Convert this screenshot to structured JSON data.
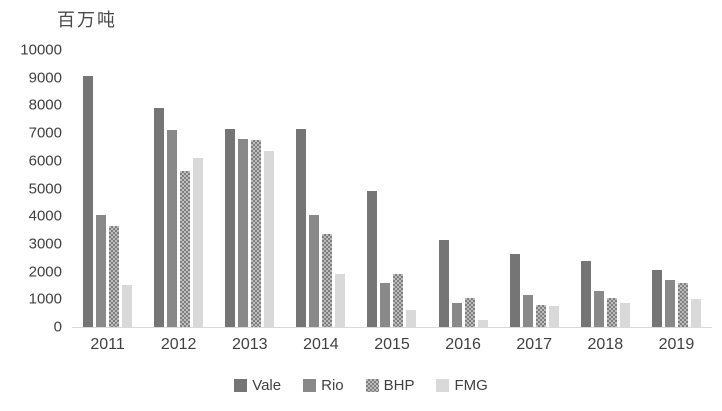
{
  "chart_data": {
    "type": "bar",
    "title": "百万吨",
    "xlabel": "",
    "ylabel": "百万吨",
    "categories": [
      "2011",
      "2012",
      "2013",
      "2014",
      "2015",
      "2016",
      "2017",
      "2018",
      "2019"
    ],
    "series": [
      {
        "name": "Vale",
        "color": "#757575",
        "pattern": "solid",
        "values": [
          9050,
          7900,
          7150,
          7150,
          4900,
          3150,
          2650,
          2400,
          2050
        ]
      },
      {
        "name": "Rio",
        "color": "#898989",
        "pattern": "solid",
        "values": [
          4050,
          7100,
          6800,
          4050,
          1600,
          850,
          1150,
          1300,
          1700
        ]
      },
      {
        "name": "BHP",
        "color": "#a6a6a6",
        "pattern": "stipple",
        "pattern_colors": [
          "#7f7f7f",
          "#bdbdbd"
        ],
        "values": [
          3650,
          5650,
          6750,
          3350,
          1900,
          1050,
          800,
          1050,
          1600
        ]
      },
      {
        "name": "FMG",
        "color": "#d9d9d9",
        "pattern": "solid",
        "values": [
          1500,
          6100,
          6350,
          1900,
          600,
          250,
          750,
          850,
          1000
        ]
      }
    ],
    "ylim": [
      0,
      10000
    ],
    "ytick_step": 1000,
    "ytick_labels": [
      "0",
      "1000",
      "2000",
      "3000",
      "4000",
      "5000",
      "6000",
      "7000",
      "8000",
      "9000",
      "10000"
    ],
    "grid": false,
    "legend_position": "bottom",
    "axis_line_color": "#d9d9d9",
    "text_color": "#404040",
    "background_color": "#ffffff"
  }
}
